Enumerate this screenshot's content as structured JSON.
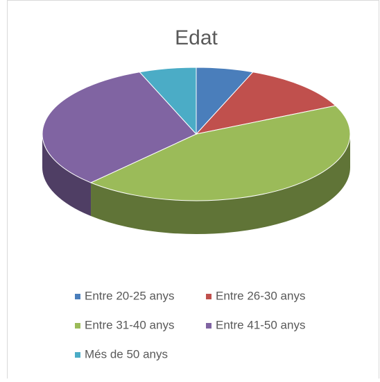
{
  "chart_data": {
    "type": "pie",
    "title": "Edat",
    "categories": [
      "Entre 20-25 anys",
      "Entre 26-30 anys",
      "Entre 31-40 anys",
      "Entre 41-50 anys",
      "Més de 50 anys"
    ],
    "values": [
      6,
      12,
      44,
      32,
      6
    ],
    "colors": [
      "#4a7ebb",
      "#c0504d",
      "#9bbb59",
      "#8064a2",
      "#4bacc6"
    ],
    "legend": "bottom"
  }
}
